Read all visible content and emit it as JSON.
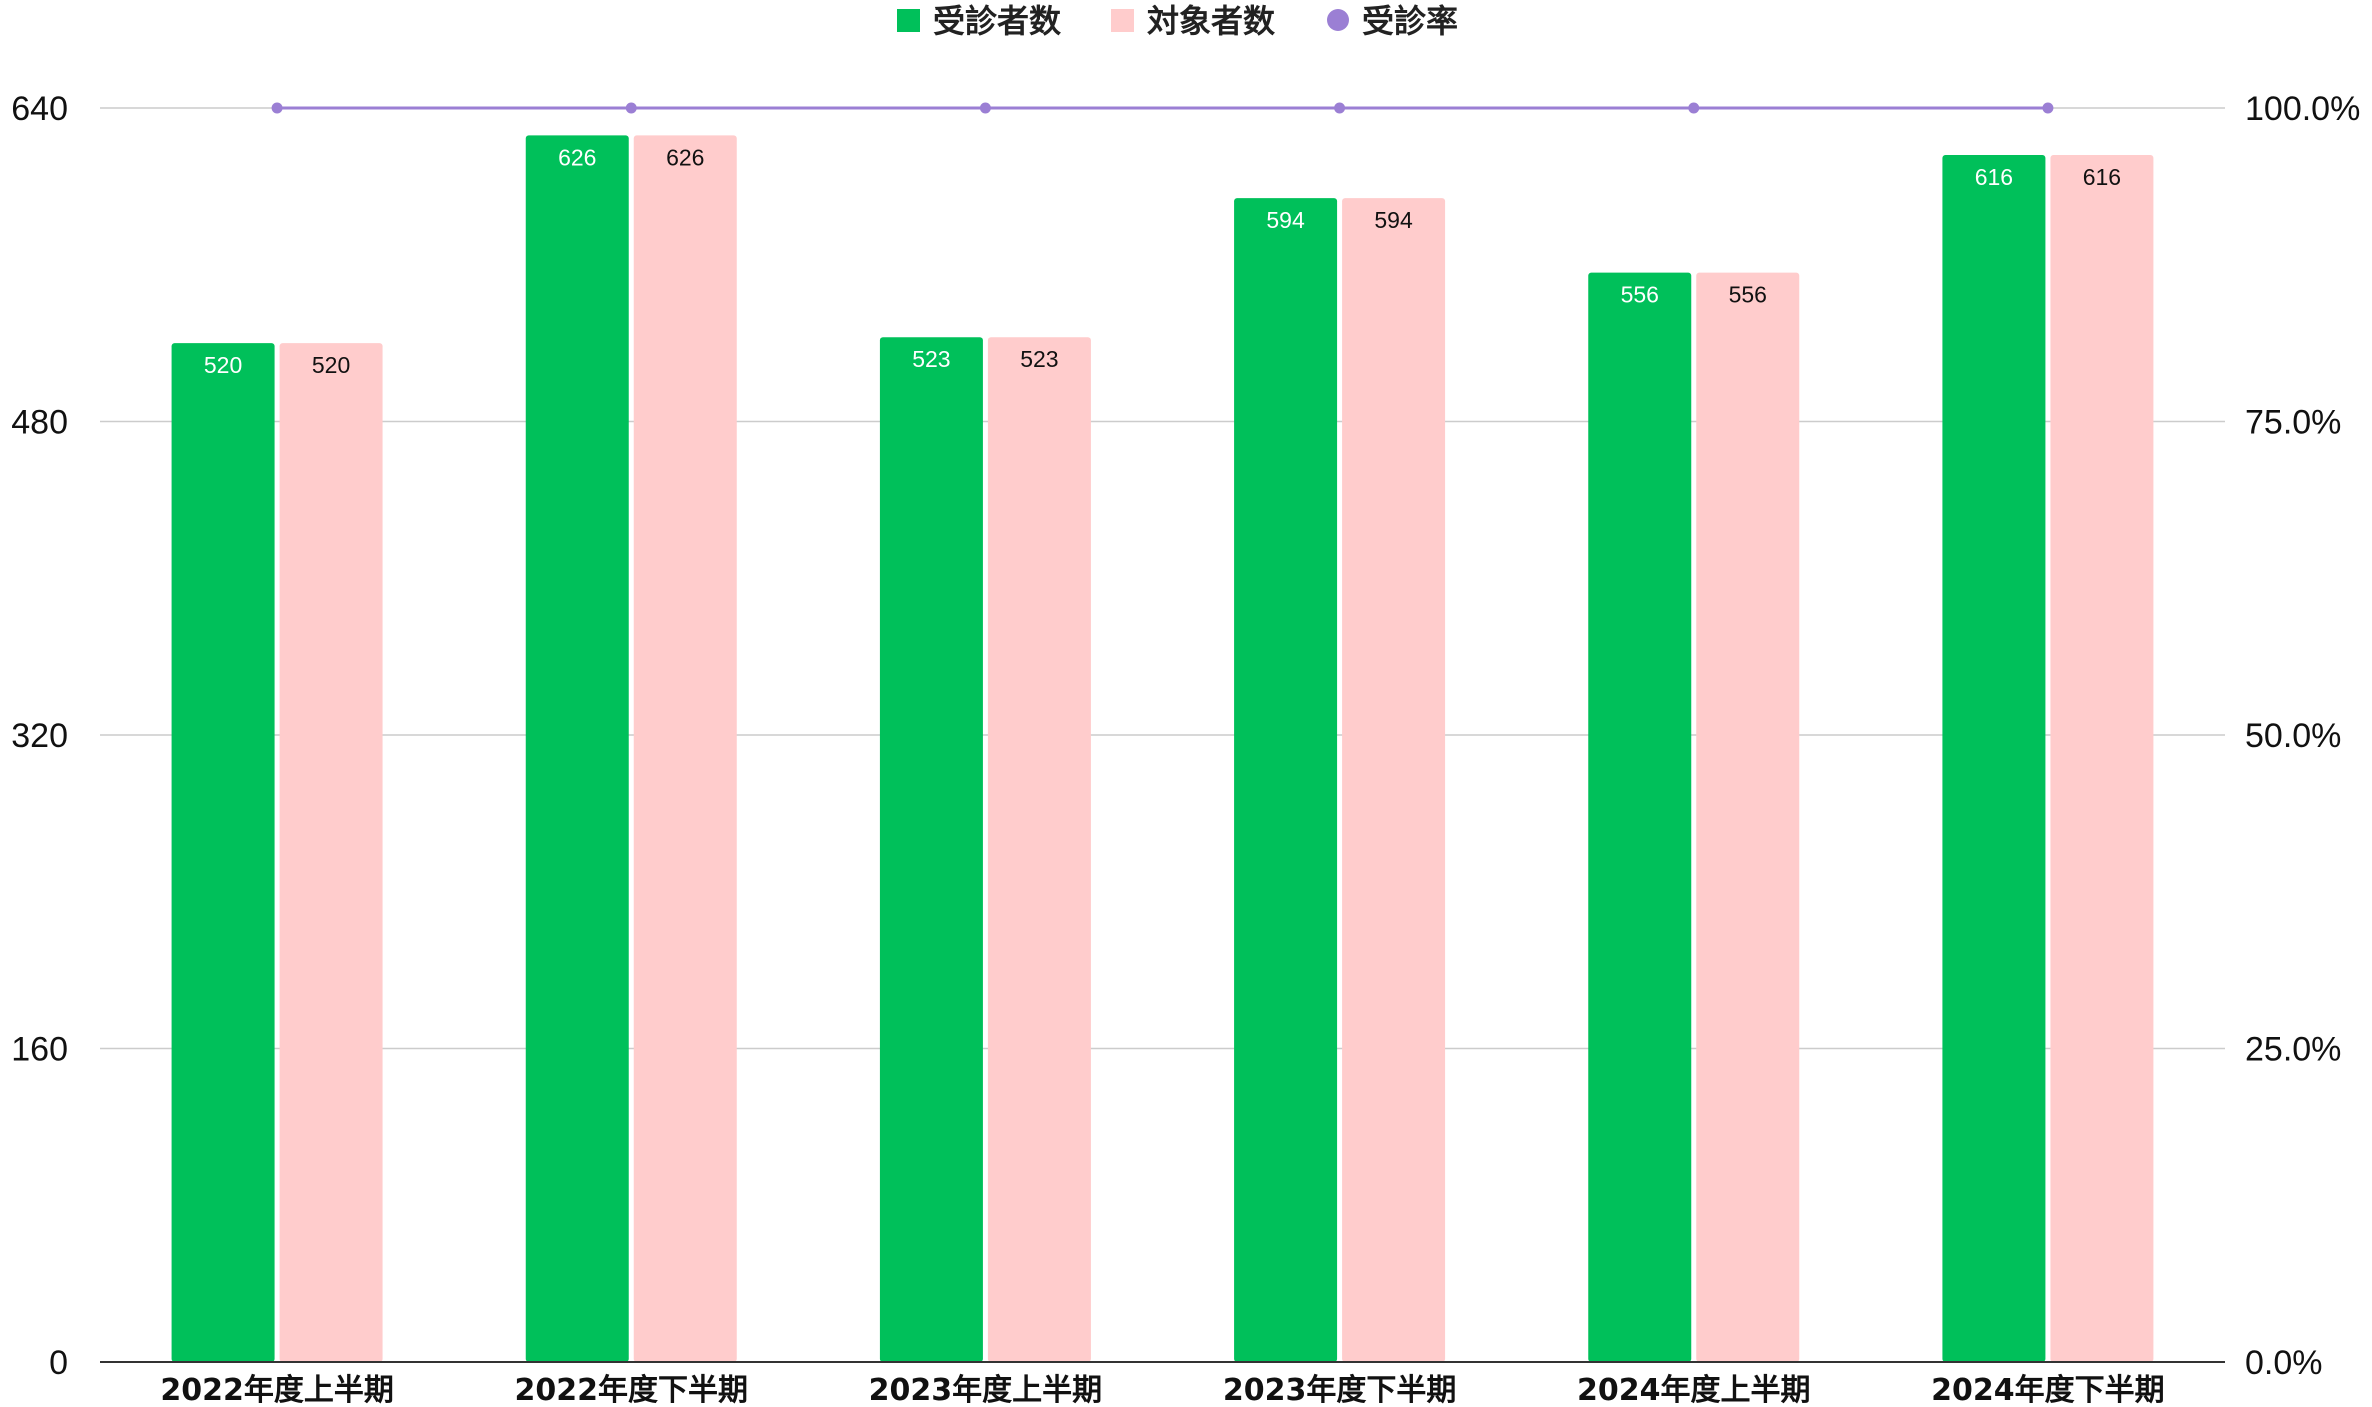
{
  "chart_data": {
    "type": "bar",
    "categories": [
      "2022年度上半期",
      "2022年度下半期",
      "2023年度上半期",
      "2023年度下半期",
      "2024年度上半期",
      "2024年度下半期"
    ],
    "series": [
      {
        "name": "受診者数",
        "values": [
          520,
          626,
          523,
          594,
          556,
          616
        ],
        "color": "#00c05a",
        "label_color": "#ffffff",
        "kind": "bar",
        "axis": "left"
      },
      {
        "name": "対象者数",
        "values": [
          520,
          626,
          523,
          594,
          556,
          616
        ],
        "color": "#ffcccc",
        "label_color": "#111111",
        "kind": "bar",
        "axis": "left"
      },
      {
        "name": "受診率",
        "values": [
          100,
          100,
          100,
          100,
          100,
          100
        ],
        "color": "#9b7fd4",
        "kind": "line",
        "axis": "right"
      }
    ],
    "y_left": {
      "ylim": [
        0,
        640
      ],
      "ticks": [
        0,
        160,
        320,
        480,
        640
      ],
      "tick_labels": [
        "0",
        "160",
        "320",
        "480",
        "640"
      ]
    },
    "y_right": {
      "ylim": [
        0,
        100
      ],
      "ticks": [
        0,
        25,
        50,
        75,
        100
      ],
      "tick_labels": [
        "0.0%",
        "25.0%",
        "50.0%",
        "75.0%",
        "100.0%"
      ]
    },
    "legend_position": "top-center",
    "grid": true
  }
}
